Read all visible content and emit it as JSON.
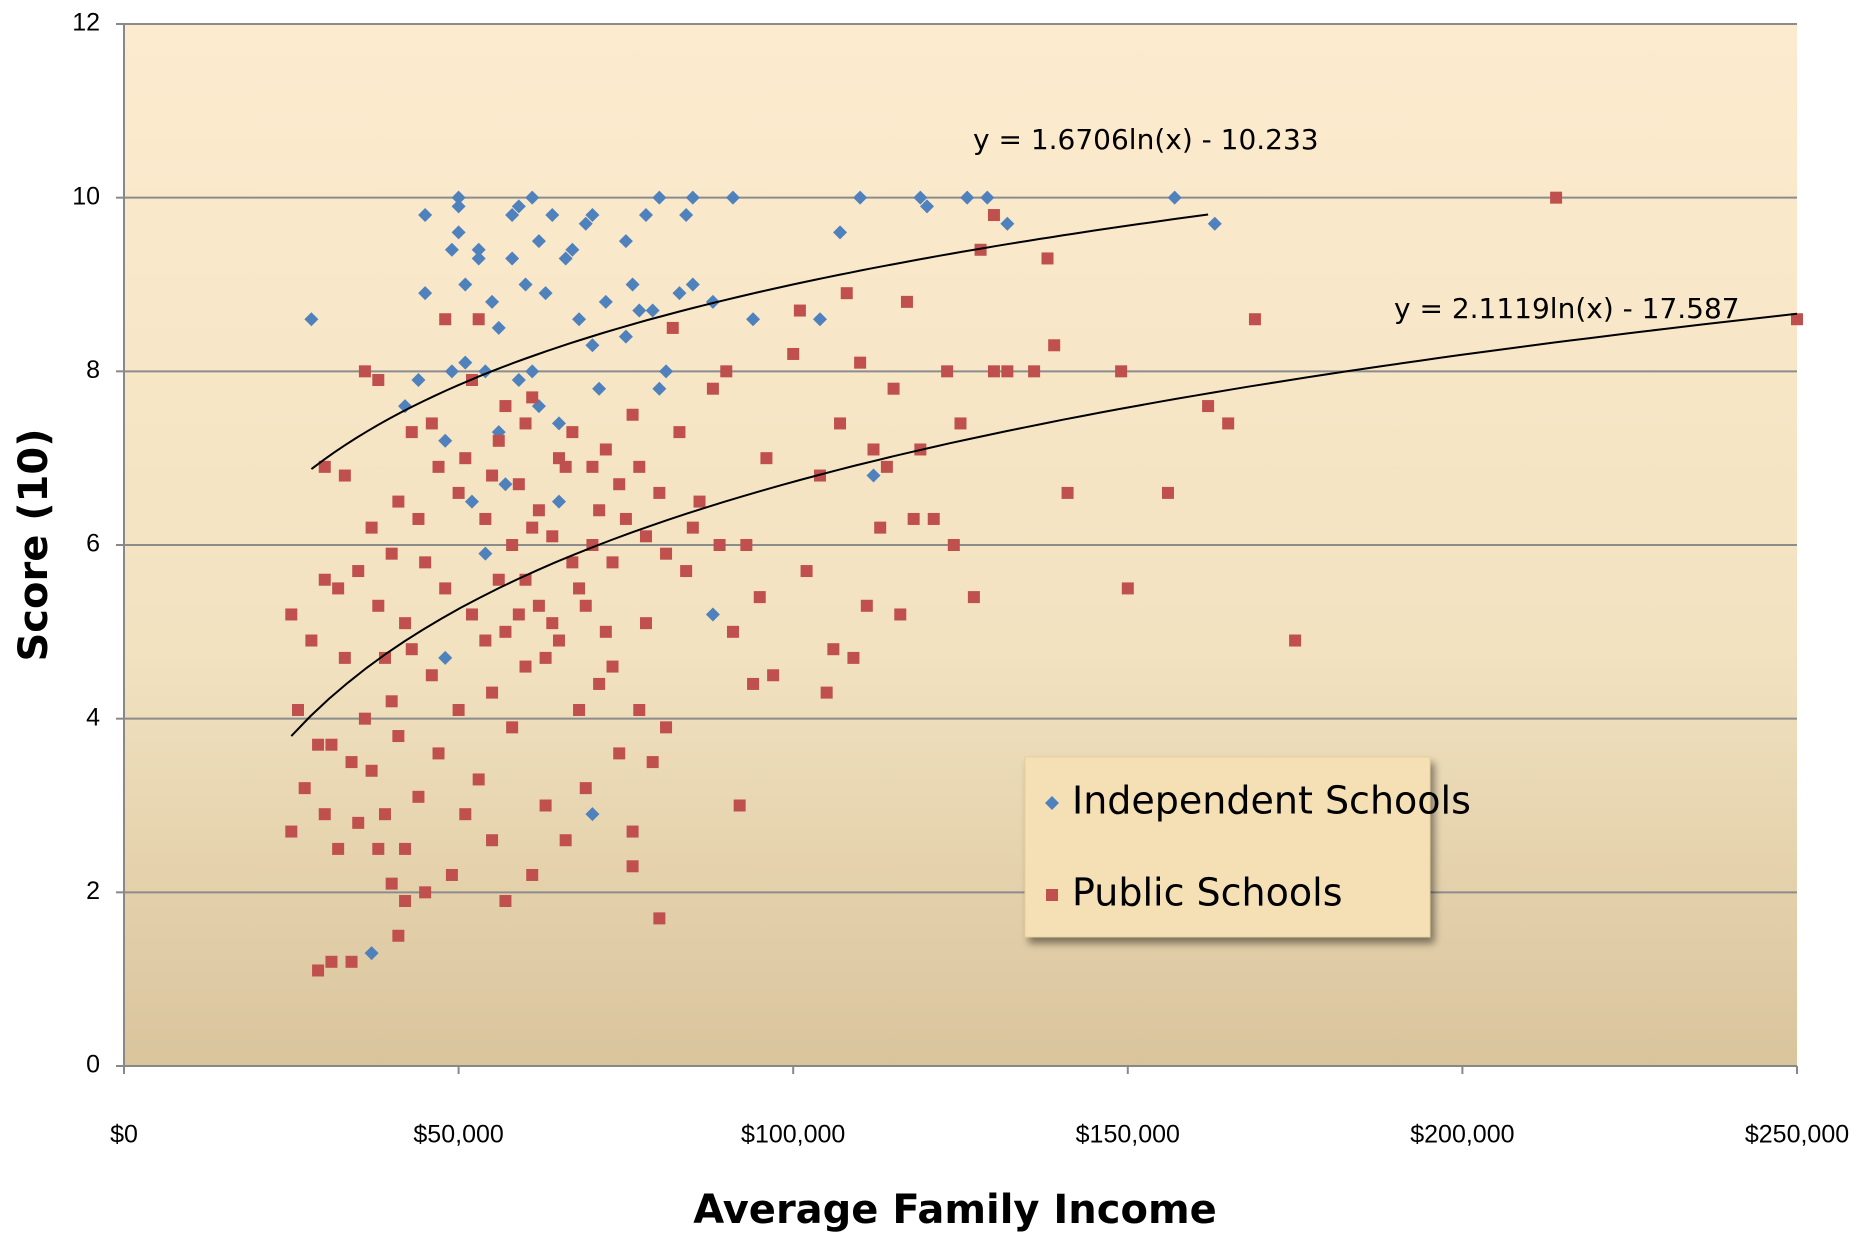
{
  "chart_data": {
    "type": "scatter",
    "x_label": "Average Family Income",
    "y_label": "Score (10)",
    "xlim": [
      0,
      250000
    ],
    "ylim": [
      0,
      12
    ],
    "xticks": [
      {
        "value": 0,
        "label": "$0"
      },
      {
        "value": 50000,
        "label": "$50,000"
      },
      {
        "value": 100000,
        "label": "$100,000"
      },
      {
        "value": 150000,
        "label": "$150,000"
      },
      {
        "value": 200000,
        "label": "$200,000"
      },
      {
        "value": 250000,
        "label": "$250,000"
      }
    ],
    "yticks": [
      0,
      2,
      4,
      6,
      8,
      10,
      12
    ],
    "grid": true,
    "legend": "right",
    "series": [
      {
        "name": "Independent Schools",
        "color": "#4f81bd",
        "marker": "diamond",
        "x": [
          28000,
          37000,
          44000,
          45000,
          45000,
          42000,
          48000,
          49000,
          49000,
          50000,
          50000,
          50000,
          51000,
          51000,
          52000,
          53000,
          53000,
          54000,
          55000,
          56000,
          57000,
          58000,
          58000,
          59000,
          59000,
          60000,
          61000,
          61000,
          62000,
          62000,
          63000,
          64000,
          65000,
          65000,
          66000,
          67000,
          68000,
          69000,
          70000,
          70000,
          70000,
          71000,
          72000,
          75000,
          75000,
          76000,
          77000,
          78000,
          79000,
          80000,
          80000,
          81000,
          83000,
          84000,
          85000,
          85000,
          88000,
          88000,
          91000,
          94000,
          104000,
          107000,
          110000,
          112000,
          119000,
          120000,
          126000,
          129000,
          132000,
          157000,
          163000,
          48000,
          54000,
          56000
        ],
        "values": [
          8.6,
          1.3,
          7.9,
          8.9,
          9.8,
          7.6,
          7.2,
          8.0,
          9.4,
          9.6,
          10,
          9.9,
          9.0,
          8.1,
          6.5,
          9.3,
          9.4,
          8.0,
          8.8,
          7.3,
          6.7,
          9.3,
          9.8,
          9.9,
          7.9,
          9.0,
          10,
          8.0,
          9.5,
          7.6,
          8.9,
          9.8,
          7.4,
          6.5,
          9.3,
          9.4,
          8.6,
          9.7,
          9.8,
          8.3,
          2.9,
          7.8,
          8.8,
          9.5,
          8.4,
          9.0,
          8.7,
          9.8,
          8.7,
          10,
          7.8,
          8.0,
          8.9,
          9.8,
          9.0,
          10,
          8.8,
          5.2,
          10,
          8.6,
          8.6,
          9.6,
          10,
          6.8,
          10,
          9.9,
          10,
          10,
          9.7,
          10,
          9.7,
          4.7,
          5.9,
          8.5
        ]
      },
      {
        "name": "Public Schools",
        "color": "#c0504d",
        "marker": "square",
        "x": [
          25000,
          25000,
          26000,
          29000,
          30000,
          30000,
          31000,
          34000,
          36000,
          38000,
          40000,
          41000,
          42000,
          80000,
          92000,
          81000,
          100000,
          101000,
          102000,
          105000,
          106000,
          108000,
          109000,
          110000,
          111000,
          114000,
          115000,
          116000,
          117000,
          118000,
          119000,
          121000,
          123000,
          124000,
          125000,
          127000,
          128000,
          130000,
          130000,
          132000,
          136000,
          138000,
          139000,
          141000,
          149000,
          150000,
          156000,
          162000,
          165000,
          169000,
          175000,
          214000,
          250000,
          113000,
          112000,
          107000,
          104000,
          96000,
          97000,
          94000,
          95000,
          93000,
          91000,
          90000,
          88000,
          86000,
          84000,
          83000,
          82000,
          80000,
          79000,
          78000,
          77000,
          76000,
          76000,
          75000,
          74000,
          73000,
          72000,
          71000,
          70000,
          69000,
          68000,
          67000,
          66000,
          65000,
          64000,
          63000,
          62000,
          61000,
          61000,
          60000,
          59000,
          58000,
          57000,
          57000,
          56000,
          55000,
          55000,
          54000,
          53000,
          53000,
          52000,
          51000,
          51000,
          50000,
          50000,
          49000,
          48000,
          48000,
          47000,
          47000,
          46000,
          46000,
          45000,
          45000,
          44000,
          44000,
          43000,
          43000,
          42000,
          42000,
          41000,
          41000,
          40000,
          40000,
          39000,
          39000,
          38000,
          38000,
          37000,
          37000,
          36000,
          35000,
          35000,
          34000,
          33000,
          33000,
          32000,
          32000,
          31000,
          30000,
          29000,
          28000,
          27000,
          52000,
          54000,
          56000,
          58000,
          60000,
          62000,
          64000,
          66000,
          68000,
          70000,
          72000,
          74000,
          76000,
          78000,
          60000,
          63000,
          67000,
          71000,
          55000,
          57000,
          59000,
          61000,
          65000,
          69000,
          73000,
          77000,
          81000,
          85000,
          89000
        ],
        "values": [
          5.2,
          2.7,
          4.1,
          1.1,
          5.6,
          6.9,
          1.2,
          1.2,
          8.0,
          7.9,
          2.1,
          1.5,
          1.9,
          1.7,
          3.0,
          3.9,
          8.2,
          8.7,
          5.7,
          4.3,
          4.8,
          8.9,
          4.7,
          8.1,
          5.3,
          6.9,
          7.8,
          5.2,
          8.8,
          6.3,
          7.1,
          6.3,
          8.0,
          6.0,
          7.4,
          5.4,
          9.4,
          9.8,
          8.0,
          8.0,
          8.0,
          9.3,
          8.3,
          6.6,
          8.0,
          5.5,
          6.6,
          7.6,
          7.4,
          8.6,
          4.9,
          10,
          8.6,
          6.2,
          7.1,
          7.4,
          6.8,
          7.0,
          4.5,
          4.4,
          5.4,
          6.0,
          5.0,
          8.0,
          7.8,
          6.5,
          5.7,
          7.3,
          8.5,
          6.6,
          3.5,
          5.1,
          4.1,
          2.3,
          2.7,
          6.3,
          3.6,
          5.8,
          7.1,
          4.4,
          6.9,
          3.2,
          5.5,
          7.3,
          2.6,
          4.9,
          6.1,
          3.0,
          5.3,
          2.2,
          7.7,
          4.6,
          6.7,
          3.9,
          1.9,
          5.0,
          7.2,
          2.6,
          4.3,
          6.3,
          3.3,
          8.6,
          5.2,
          2.9,
          7.0,
          4.1,
          6.6,
          2.2,
          5.5,
          8.6,
          3.6,
          6.9,
          4.5,
          7.4,
          2.0,
          5.8,
          3.1,
          6.3,
          4.8,
          7.3,
          2.5,
          5.1,
          3.8,
          6.5,
          4.2,
          5.9,
          2.9,
          4.7,
          2.5,
          5.3,
          3.4,
          6.2,
          4.0,
          2.8,
          5.7,
          3.5,
          4.7,
          6.8,
          2.5,
          5.5,
          3.7,
          2.9,
          3.7,
          4.9,
          3.2,
          7.9,
          4.9,
          5.6,
          6.0,
          7.4,
          6.4,
          5.1,
          6.9,
          4.1,
          6.0,
          5.0,
          6.7,
          7.5,
          6.1,
          5.6,
          4.7,
          5.8,
          6.4,
          6.8,
          7.6,
          5.2,
          6.2,
          7.0,
          5.3,
          4.6,
          6.9,
          5.9,
          6.2,
          6.0
        ]
      }
    ],
    "trendlines": [
      {
        "label": "y = 1.6706ln(x) - 10.233",
        "a": 1.6706,
        "b": -10.233,
        "x_start": 28000,
        "x_end": 162000,
        "color": "#000000"
      },
      {
        "label": "y = 2.1119ln(x) - 17.587",
        "a": 2.1119,
        "b": -17.587,
        "x_start": 25000,
        "x_end": 250000,
        "color": "#000000"
      }
    ]
  }
}
